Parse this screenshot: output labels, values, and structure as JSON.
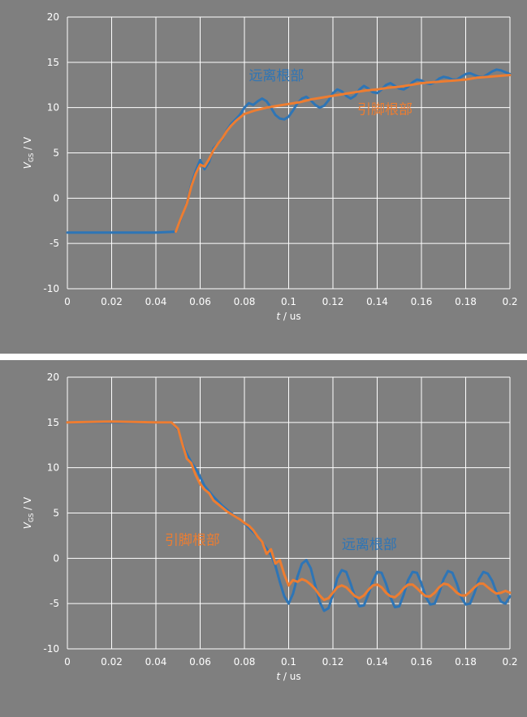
{
  "chart_data": [
    {
      "type": "line",
      "title": "",
      "xlabel_main": "t",
      "xlabel_unit": " / us",
      "ylabel_main": "V",
      "ylabel_sub": "GS",
      "ylabel_unit": " / V",
      "xlim": [
        0,
        0.2
      ],
      "ylim": [
        -10,
        20
      ],
      "x_ticks": [
        0,
        0.02,
        0.04,
        0.06,
        0.08,
        0.1,
        0.12,
        0.14,
        0.16,
        0.18,
        0.2
      ],
      "x_tick_labels": [
        "0",
        "0.02",
        "0.04",
        "0.06",
        "0.08",
        "0.1",
        "0.12",
        "0.14",
        "0.16",
        "0.18",
        "0.2"
      ],
      "y_ticks": [
        -10,
        -5,
        0,
        5,
        10,
        15,
        20
      ],
      "y_tick_labels": [
        "-10",
        "-5",
        "0",
        "5",
        "10",
        "15",
        "20"
      ],
      "grid": true,
      "annotations": [
        {
          "text": "远离根部",
          "x": 0.082,
          "y": 13.0,
          "color": "#2e75b6"
        },
        {
          "text": "引脚根部",
          "x": 0.131,
          "y": 9.3,
          "color": "#ed7d31"
        }
      ],
      "series": [
        {
          "color": "#2e75b6",
          "x": [
            0,
            0.02,
            0.04,
            0.049,
            0.051,
            0.054,
            0.056,
            0.058,
            0.06,
            0.062,
            0.064,
            0.066,
            0.068,
            0.07,
            0.072,
            0.074,
            0.076,
            0.078,
            0.08,
            0.082,
            0.084,
            0.086,
            0.088,
            0.09,
            0.092,
            0.094,
            0.096,
            0.098,
            0.1,
            0.102,
            0.104,
            0.106,
            0.108,
            0.11,
            0.112,
            0.114,
            0.116,
            0.118,
            0.12,
            0.122,
            0.124,
            0.126,
            0.128,
            0.13,
            0.132,
            0.134,
            0.136,
            0.138,
            0.14,
            0.142,
            0.144,
            0.146,
            0.148,
            0.15,
            0.152,
            0.154,
            0.156,
            0.158,
            0.16,
            0.162,
            0.164,
            0.166,
            0.168,
            0.17,
            0.172,
            0.174,
            0.176,
            0.178,
            0.18,
            0.182,
            0.184,
            0.186,
            0.188,
            0.19,
            0.192,
            0.194,
            0.196,
            0.198,
            0.2
          ],
          "y": [
            -3.8,
            -3.8,
            -3.8,
            -3.7,
            -2.5,
            -0.5,
            1.5,
            3.0,
            4.2,
            3.2,
            4.0,
            5.5,
            6.0,
            6.5,
            7.5,
            8.2,
            8.7,
            9.2,
            10.0,
            10.5,
            10.3,
            10.7,
            11.0,
            10.7,
            10.0,
            9.2,
            8.8,
            8.7,
            9.0,
            9.7,
            10.5,
            11.0,
            11.2,
            10.8,
            10.3,
            10.0,
            10.2,
            10.8,
            11.6,
            12.0,
            11.8,
            11.3,
            11.0,
            11.3,
            12.0,
            12.4,
            12.1,
            11.7,
            11.6,
            12.0,
            12.5,
            12.7,
            12.4,
            12.1,
            12.0,
            12.3,
            12.8,
            13.1,
            13.0,
            12.7,
            12.6,
            12.8,
            13.2,
            13.4,
            13.3,
            13.1,
            13.1,
            13.4,
            13.7,
            13.8,
            13.6,
            13.4,
            13.4,
            13.7,
            14.0,
            14.2,
            14.1,
            13.9,
            13.7
          ]
        },
        {
          "color": "#ed7d31",
          "x": [
            0.049,
            0.051,
            0.054,
            0.056,
            0.058,
            0.06,
            0.062,
            0.064,
            0.066,
            0.068,
            0.07,
            0.072,
            0.074,
            0.076,
            0.078,
            0.08,
            0.085,
            0.09,
            0.095,
            0.1,
            0.105,
            0.11,
            0.115,
            0.12,
            0.125,
            0.13,
            0.135,
            0.14,
            0.145,
            0.15,
            0.155,
            0.16,
            0.165,
            0.17,
            0.175,
            0.18,
            0.185,
            0.19,
            0.195,
            0.2
          ],
          "y": [
            -3.7,
            -2.4,
            -0.6,
            1.3,
            2.7,
            3.7,
            3.5,
            4.3,
            5.3,
            6.0,
            6.6,
            7.4,
            8.0,
            8.5,
            8.9,
            9.3,
            9.7,
            10.0,
            10.2,
            10.4,
            10.6,
            10.9,
            11.1,
            11.3,
            11.5,
            11.7,
            11.9,
            12.0,
            12.2,
            12.3,
            12.5,
            12.7,
            12.8,
            12.9,
            13.0,
            13.1,
            13.3,
            13.4,
            13.5,
            13.6
          ]
        }
      ]
    },
    {
      "type": "line",
      "title": "",
      "xlabel_main": "t",
      "xlabel_unit": " / us",
      "ylabel_main": "V",
      "ylabel_sub": "GS",
      "ylabel_unit": " / V",
      "xlim": [
        0,
        0.2
      ],
      "ylim": [
        -10,
        20
      ],
      "x_ticks": [
        0,
        0.02,
        0.04,
        0.06,
        0.08,
        0.1,
        0.12,
        0.14,
        0.16,
        0.18,
        0.2
      ],
      "x_tick_labels": [
        "0",
        "0.02",
        "0.04",
        "0.06",
        "0.08",
        "0.1",
        "0.12",
        "0.14",
        "0.16",
        "0.18",
        "0.2"
      ],
      "y_ticks": [
        -10,
        -5,
        0,
        5,
        10,
        15,
        20
      ],
      "y_tick_labels": [
        "-10",
        "-5",
        "0",
        "5",
        "10",
        "15",
        "20"
      ],
      "grid": true,
      "annotations": [
        {
          "text": "引脚根部",
          "x": 0.044,
          "y": 1.5,
          "color": "#ed7d31"
        },
        {
          "text": "远离根部",
          "x": 0.124,
          "y": 1.0,
          "color": "#2e75b6"
        }
      ],
      "series": [
        {
          "color": "#2e75b6",
          "x": [
            0,
            0.02,
            0.04,
            0.047,
            0.05,
            0.053,
            0.056,
            0.059,
            0.062,
            0.066,
            0.07,
            0.074,
            0.078,
            0.082,
            0.086,
            0.089,
            0.092,
            0.094,
            0.096,
            0.098,
            0.1,
            0.102,
            0.104,
            0.106,
            0.108,
            0.11,
            0.112,
            0.114,
            0.116,
            0.118,
            0.12,
            0.122,
            0.124,
            0.126,
            0.128,
            0.13,
            0.132,
            0.134,
            0.136,
            0.138,
            0.14,
            0.142,
            0.144,
            0.146,
            0.148,
            0.15,
            0.152,
            0.154,
            0.156,
            0.158,
            0.16,
            0.162,
            0.164,
            0.166,
            0.168,
            0.17,
            0.172,
            0.174,
            0.176,
            0.178,
            0.18,
            0.182,
            0.184,
            0.186,
            0.188,
            0.19,
            0.192,
            0.194,
            0.196,
            0.198,
            0.2
          ],
          "y": [
            15.0,
            15.0,
            15.0,
            15.0,
            14.2,
            12.0,
            10.6,
            9.5,
            8.0,
            6.8,
            5.8,
            5.0,
            4.3,
            3.4,
            2.4,
            1.4,
            0.4,
            -0.8,
            -2.6,
            -4.2,
            -5.0,
            -3.9,
            -2.0,
            -0.6,
            -0.2,
            -1.1,
            -3.0,
            -4.8,
            -5.8,
            -5.5,
            -4.0,
            -2.2,
            -1.3,
            -1.5,
            -2.8,
            -4.3,
            -5.3,
            -5.2,
            -4.0,
            -2.5,
            -1.5,
            -1.6,
            -2.8,
            -4.3,
            -5.4,
            -5.3,
            -4.0,
            -2.4,
            -1.5,
            -1.6,
            -2.8,
            -4.3,
            -5.1,
            -5.0,
            -3.8,
            -2.3,
            -1.4,
            -1.6,
            -2.8,
            -4.3,
            -5.1,
            -5.0,
            -3.8,
            -2.3,
            -1.5,
            -1.7,
            -2.5,
            -3.8,
            -4.8,
            -5.0,
            -4.2
          ]
        },
        {
          "color": "#ed7d31",
          "x": [
            0,
            0.02,
            0.04,
            0.047,
            0.05,
            0.052,
            0.054,
            0.056,
            0.058,
            0.06,
            0.062,
            0.064,
            0.066,
            0.068,
            0.07,
            0.072,
            0.074,
            0.076,
            0.078,
            0.08,
            0.082,
            0.084,
            0.086,
            0.088,
            0.09,
            0.092,
            0.094,
            0.096,
            0.098,
            0.1,
            0.102,
            0.104,
            0.106,
            0.108,
            0.11,
            0.112,
            0.114,
            0.116,
            0.118,
            0.12,
            0.122,
            0.124,
            0.126,
            0.128,
            0.13,
            0.132,
            0.134,
            0.136,
            0.138,
            0.14,
            0.142,
            0.144,
            0.146,
            0.148,
            0.15,
            0.152,
            0.154,
            0.156,
            0.158,
            0.16,
            0.162,
            0.164,
            0.166,
            0.168,
            0.17,
            0.172,
            0.174,
            0.176,
            0.178,
            0.18,
            0.182,
            0.184,
            0.186,
            0.188,
            0.19,
            0.192,
            0.194,
            0.196,
            0.198,
            0.2
          ],
          "y": [
            15.0,
            15.1,
            15.0,
            15.0,
            14.3,
            12.6,
            11.0,
            10.5,
            9.2,
            8.2,
            7.6,
            7.2,
            6.4,
            6.0,
            5.6,
            5.2,
            4.9,
            4.6,
            4.3,
            3.9,
            3.6,
            3.1,
            2.4,
            1.8,
            0.5,
            1.0,
            -0.6,
            -0.2,
            -1.8,
            -3.0,
            -2.4,
            -2.6,
            -2.3,
            -2.5,
            -2.9,
            -3.4,
            -4.1,
            -4.6,
            -4.4,
            -3.8,
            -3.2,
            -3.0,
            -3.2,
            -3.7,
            -4.2,
            -4.4,
            -4.1,
            -3.5,
            -3.0,
            -2.9,
            -3.2,
            -3.8,
            -4.2,
            -4.3,
            -3.9,
            -3.3,
            -2.9,
            -2.9,
            -3.3,
            -3.8,
            -4.2,
            -4.2,
            -3.8,
            -3.2,
            -2.8,
            -2.9,
            -3.3,
            -3.8,
            -4.1,
            -4.1,
            -3.7,
            -3.2,
            -2.8,
            -2.8,
            -3.2,
            -3.6,
            -3.9,
            -3.8,
            -3.6,
            -3.8
          ]
        }
      ]
    }
  ]
}
